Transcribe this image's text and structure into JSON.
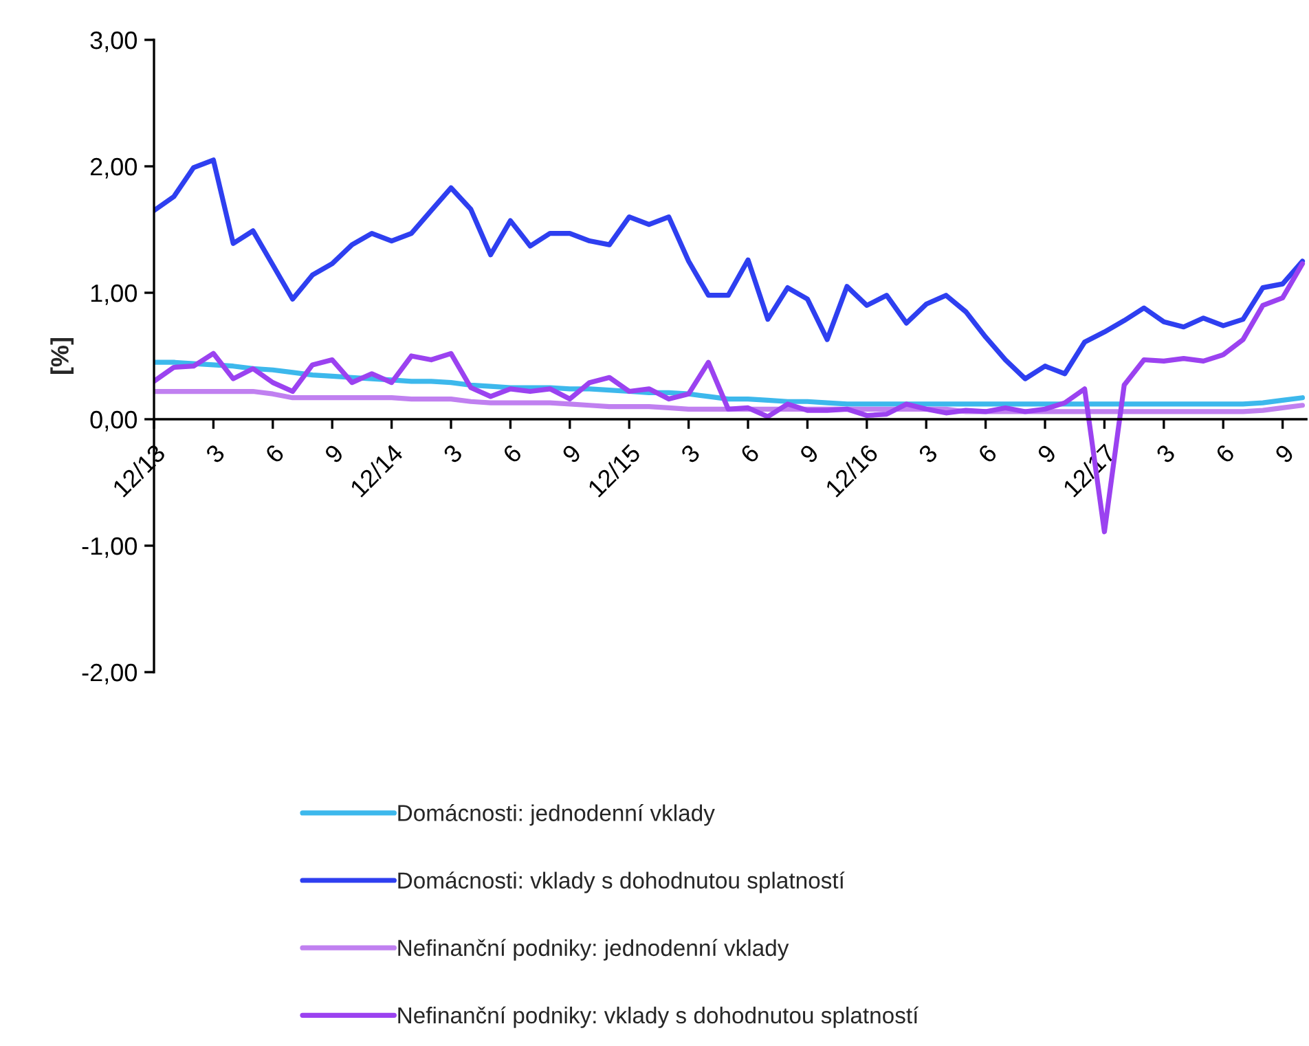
{
  "chart_data": {
    "type": "line",
    "ylabel": "[%]",
    "categories": [
      "12/13",
      null,
      null,
      "3",
      null,
      null,
      "6",
      null,
      null,
      "9",
      null,
      null,
      "12/14",
      null,
      null,
      "3",
      null,
      null,
      "6",
      null,
      null,
      "9",
      null,
      null,
      "12/15",
      null,
      null,
      "3",
      null,
      null,
      "6",
      null,
      null,
      "9",
      null,
      null,
      "12/16",
      null,
      null,
      "3",
      null,
      null,
      "6",
      null,
      null,
      "9",
      null,
      null,
      "12/17",
      null,
      null,
      "3",
      null,
      null,
      "6",
      null,
      null,
      "9",
      null
    ],
    "series": [
      {
        "name": "Domácnosti: jednodenní vklady",
        "color": "#3db8ec",
        "values": [
          0.45,
          0.45,
          0.44,
          0.43,
          0.42,
          0.4,
          0.39,
          0.37,
          0.35,
          0.34,
          0.33,
          0.32,
          0.31,
          0.3,
          0.3,
          0.29,
          0.27,
          0.26,
          0.25,
          0.25,
          0.25,
          0.24,
          0.24,
          0.23,
          0.22,
          0.21,
          0.21,
          0.2,
          0.18,
          0.16,
          0.16,
          0.15,
          0.14,
          0.14,
          0.13,
          0.12,
          0.12,
          0.12,
          0.12,
          0.12,
          0.12,
          0.12,
          0.12,
          0.12,
          0.12,
          0.12,
          0.12,
          0.12,
          0.12,
          0.12,
          0.12,
          0.12,
          0.12,
          0.12,
          0.12,
          0.12,
          0.13,
          0.15,
          0.17
        ]
      },
      {
        "name": "Domácnosti: vklady s dohodnutou splatností",
        "color": "#2e3ff0",
        "values": [
          1.65,
          1.76,
          1.99,
          2.05,
          1.39,
          1.49,
          1.22,
          0.95,
          1.14,
          1.23,
          1.38,
          1.47,
          1.41,
          1.47,
          1.65,
          1.83,
          1.66,
          1.3,
          1.57,
          1.37,
          1.47,
          1.47,
          1.41,
          1.38,
          1.6,
          1.54,
          1.6,
          1.25,
          0.98,
          0.98,
          1.26,
          0.79,
          1.04,
          0.95,
          0.63,
          1.05,
          0.9,
          0.98,
          0.76,
          0.91,
          0.98,
          0.85,
          0.65,
          0.47,
          0.32,
          0.42,
          0.36,
          0.61,
          0.69,
          0.78,
          0.88,
          0.77,
          0.73,
          0.8,
          0.74,
          0.79,
          1.04,
          1.07,
          1.25
        ]
      },
      {
        "name": "Nefinanční podniky: jednodenní vklady",
        "color": "#c080f0",
        "values": [
          0.22,
          0.22,
          0.22,
          0.22,
          0.22,
          0.22,
          0.2,
          0.17,
          0.17,
          0.17,
          0.17,
          0.17,
          0.17,
          0.16,
          0.16,
          0.16,
          0.14,
          0.13,
          0.13,
          0.13,
          0.13,
          0.12,
          0.11,
          0.1,
          0.1,
          0.1,
          0.09,
          0.08,
          0.08,
          0.08,
          0.08,
          0.08,
          0.08,
          0.08,
          0.08,
          0.08,
          0.08,
          0.08,
          0.08,
          0.08,
          0.08,
          0.06,
          0.06,
          0.06,
          0.06,
          0.06,
          0.06,
          0.06,
          0.06,
          0.06,
          0.06,
          0.06,
          0.06,
          0.06,
          0.06,
          0.06,
          0.07,
          0.09,
          0.11
        ]
      },
      {
        "name": "Nefinanční podniky: vklady s dohodnutou splatností",
        "color": "#9b42f0",
        "values": [
          0.3,
          0.41,
          0.42,
          0.52,
          0.32,
          0.4,
          0.29,
          0.22,
          0.43,
          0.47,
          0.29,
          0.36,
          0.29,
          0.5,
          0.47,
          0.52,
          0.25,
          0.18,
          0.24,
          0.22,
          0.24,
          0.16,
          0.29,
          0.33,
          0.22,
          0.24,
          0.16,
          0.2,
          0.45,
          0.08,
          0.09,
          0.02,
          0.12,
          0.07,
          0.07,
          0.08,
          0.03,
          0.04,
          0.12,
          0.08,
          0.05,
          0.07,
          0.06,
          0.09,
          0.06,
          0.08,
          0.13,
          0.24,
          -0.89,
          0.27,
          0.47,
          0.46,
          0.48,
          0.46,
          0.51,
          0.63,
          0.9,
          0.96,
          1.23
        ]
      }
    ],
    "ylim": [
      -2,
      3
    ],
    "yticks": [
      {
        "value": -2,
        "label": "-2,00"
      },
      {
        "value": -1,
        "label": "-1,00"
      },
      {
        "value": 0,
        "label": "0,00"
      },
      {
        "value": 1,
        "label": "1,00"
      },
      {
        "value": 2,
        "label": "2,00"
      },
      {
        "value": 3,
        "label": "3,00"
      }
    ],
    "grid": false,
    "legend": "bottom",
    "marker": "none",
    "line_style": "solid"
  }
}
